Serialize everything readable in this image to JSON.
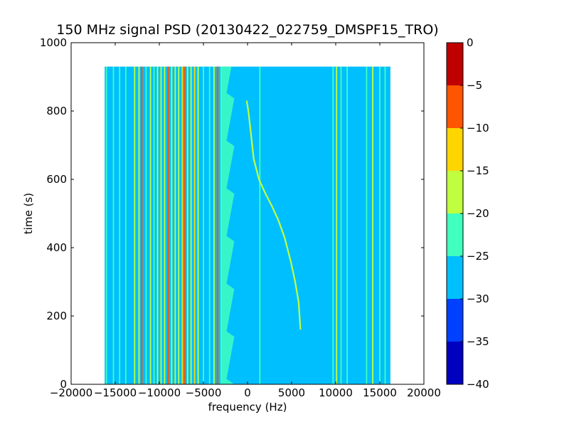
{
  "chart_data": {
    "type": "heatmap",
    "title": "150 MHz signal PSD (20130422_022759_DMSPF15_TRO)",
    "xlabel": "frequency (Hz)",
    "ylabel": "time (s)",
    "xlim": [
      -20000,
      20000
    ],
    "ylim": [
      0,
      1000
    ],
    "x_ticks": [
      -20000,
      -15000,
      -10000,
      -5000,
      0,
      5000,
      10000,
      15000,
      20000
    ],
    "y_ticks": [
      0,
      200,
      400,
      600,
      800,
      1000
    ],
    "data_extent": {
      "x": [
        -16200,
        16200
      ],
      "y": [
        0,
        930
      ]
    },
    "background_level_db": -27,
    "colorbar": {
      "levels": [
        -40,
        -35,
        -30,
        -25,
        -20,
        -15,
        -10,
        -5,
        0
      ],
      "colors": [
        "#0000bf",
        "#0040ff",
        "#00bfff",
        "#40ffbf",
        "#bfff40",
        "#ffd500",
        "#ff5500",
        "#bf0000"
      ],
      "tick_labels": [
        "0",
        "−5",
        "−10",
        "−15",
        "−20",
        "−25",
        "−30",
        "−35",
        "−40"
      ]
    },
    "vertical_lines": [
      {
        "freq": -16000,
        "level_db": -22
      },
      {
        "freq": -15200,
        "level_db": -22
      },
      {
        "freq": -14500,
        "level_db": -22
      },
      {
        "freq": -13800,
        "level_db": -22
      },
      {
        "freq": -12800,
        "level_db": -20
      },
      {
        "freq": -12300,
        "level_db": -20
      },
      {
        "freq": -12000,
        "level_db": -8
      },
      {
        "freq": -11500,
        "level_db": -22
      },
      {
        "freq": -11000,
        "level_db": -18
      },
      {
        "freq": -10600,
        "level_db": -22
      },
      {
        "freq": -10200,
        "level_db": -20
      },
      {
        "freq": -9800,
        "level_db": -18
      },
      {
        "freq": -9400,
        "level_db": -20
      },
      {
        "freq": -9000,
        "level_db": -8
      },
      {
        "freq": -8600,
        "level_db": -20
      },
      {
        "freq": -8200,
        "level_db": -18
      },
      {
        "freq": -7800,
        "level_db": -20
      },
      {
        "freq": -7400,
        "level_db": -14
      },
      {
        "freq": -7100,
        "level_db": -8
      },
      {
        "freq": -6800,
        "level_db": -18
      },
      {
        "freq": -6400,
        "level_db": -20
      },
      {
        "freq": -6000,
        "level_db": -14
      },
      {
        "freq": -5600,
        "level_db": -20
      },
      {
        "freq": -5000,
        "level_db": -22
      },
      {
        "freq": -4300,
        "level_db": -22
      },
      {
        "freq": -3800,
        "level_db": -20
      },
      {
        "freq": -3400,
        "level_db": -8
      },
      {
        "freq": -3000,
        "level_db": -22
      },
      {
        "freq": 1400,
        "level_db": -22
      },
      {
        "freq": 9700,
        "level_db": -22
      },
      {
        "freq": 10100,
        "level_db": -20
      },
      {
        "freq": 10600,
        "level_db": -22
      },
      {
        "freq": 11300,
        "level_db": -22
      },
      {
        "freq": 13500,
        "level_db": -22
      },
      {
        "freq": 14200,
        "level_db": -20
      },
      {
        "freq": 15000,
        "level_db": -22
      },
      {
        "freq": 15600,
        "level_db": -22
      }
    ],
    "noise_band": {
      "freq_range": [
        -3000,
        -1500
      ],
      "level_db": -22
    },
    "doppler_track": {
      "level_db": -18,
      "points": [
        {
          "freq": 6000,
          "time": 160
        },
        {
          "freq": 5800,
          "time": 240
        },
        {
          "freq": 5400,
          "time": 300
        },
        {
          "freq": 4900,
          "time": 360
        },
        {
          "freq": 4200,
          "time": 430
        },
        {
          "freq": 3500,
          "time": 480
        },
        {
          "freq": 2800,
          "time": 520
        },
        {
          "freq": 2000,
          "time": 560
        },
        {
          "freq": 1300,
          "time": 600
        },
        {
          "freq": 700,
          "time": 660
        },
        {
          "freq": 400,
          "time": 730
        },
        {
          "freq": 100,
          "time": 800
        },
        {
          "freq": -100,
          "time": 830
        }
      ]
    }
  }
}
